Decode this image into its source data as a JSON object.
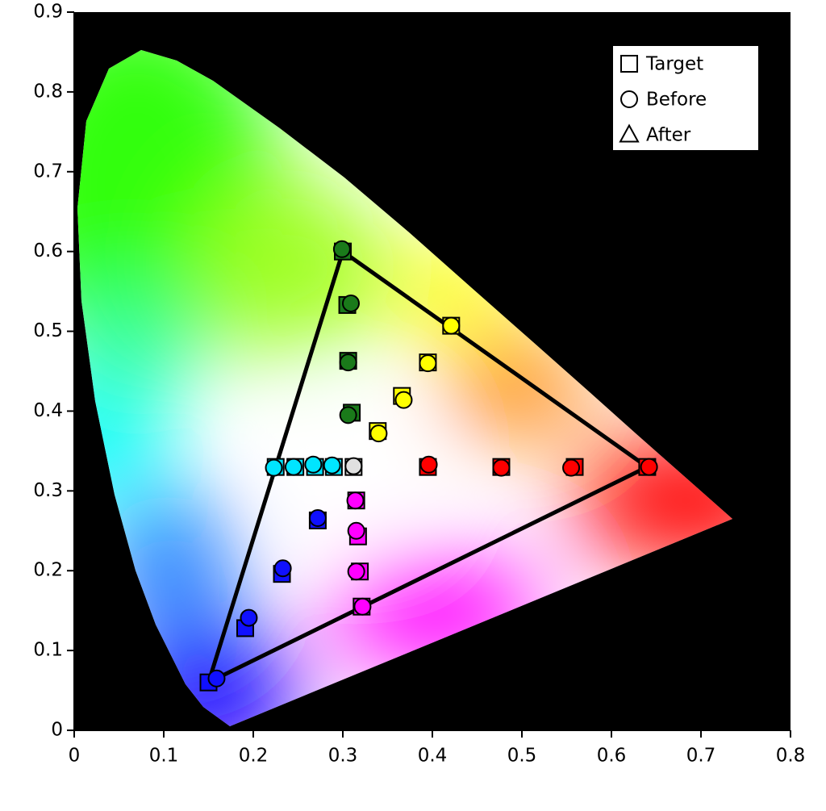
{
  "chart_data": {
    "type": "scatter",
    "xlim": [
      0,
      0.8
    ],
    "ylim": [
      0,
      0.9
    ],
    "xticks": [
      0,
      0.1,
      0.2,
      0.3,
      0.4,
      0.5,
      0.6,
      0.7,
      0.8
    ],
    "yticks": [
      0,
      0.1,
      0.2,
      0.3,
      0.4,
      0.5,
      0.6,
      0.7,
      0.8,
      0.9
    ],
    "legend": "top-right",
    "series": [
      {
        "name": "Target",
        "marker": "square",
        "x": [
          0.64,
          0.3,
          0.15,
          0.421,
          0.312,
          0.559,
          0.477,
          0.395,
          0.305,
          0.306,
          0.31,
          0.191,
          0.232,
          0.272,
          0.225,
          0.247,
          0.269,
          0.29,
          0.395,
          0.366,
          0.339,
          0.321,
          0.319,
          0.317,
          0.315
        ],
        "y": [
          0.33,
          0.6,
          0.06,
          0.507,
          0.33,
          0.33,
          0.33,
          0.33,
          0.533,
          0.463,
          0.398,
          0.128,
          0.196,
          0.263,
          0.33,
          0.33,
          0.33,
          0.33,
          0.461,
          0.419,
          0.375,
          0.155,
          0.199,
          0.243,
          0.288
        ],
        "colors": [
          "#ff0000",
          "#1a7a1a",
          "#1010ff",
          "#ffff00",
          "#e0e0e0",
          "#ff0000",
          "#ff0000",
          "#ff0000",
          "#1a7a1a",
          "#1a7a1a",
          "#1a7a1a",
          "#1010ff",
          "#1010ff",
          "#1010ff",
          "#00e5ff",
          "#00e5ff",
          "#00e5ff",
          "#00e5ff",
          "#ffff00",
          "#ffff00",
          "#ffff00",
          "#ff00ff",
          "#ff00ff",
          "#ff00ff",
          "#ff00ff"
        ]
      },
      {
        "name": "Before",
        "marker": "circle",
        "x": [
          0.642,
          0.299,
          0.159,
          0.421,
          0.312,
          0.555,
          0.477,
          0.396,
          0.309,
          0.306,
          0.306,
          0.195,
          0.233,
          0.272,
          0.223,
          0.245,
          0.267,
          0.288,
          0.395,
          0.368,
          0.34,
          0.322,
          0.315,
          0.315,
          0.314
        ],
        "y": [
          0.33,
          0.603,
          0.065,
          0.507,
          0.331,
          0.329,
          0.329,
          0.333,
          0.535,
          0.461,
          0.395,
          0.141,
          0.203,
          0.266,
          0.329,
          0.33,
          0.333,
          0.332,
          0.46,
          0.414,
          0.372,
          0.155,
          0.199,
          0.25,
          0.288
        ],
        "colors": [
          "#ff0000",
          "#1a7a1a",
          "#1010ff",
          "#ffff00",
          "#e0e0e0",
          "#ff0000",
          "#ff0000",
          "#ff0000",
          "#1a7a1a",
          "#1a7a1a",
          "#1a7a1a",
          "#1010ff",
          "#1010ff",
          "#1010ff",
          "#00e5ff",
          "#00e5ff",
          "#00e5ff",
          "#00e5ff",
          "#ffff00",
          "#ffff00",
          "#ffff00",
          "#ff00ff",
          "#ff00ff",
          "#ff00ff",
          "#ff00ff"
        ]
      },
      {
        "name": "After",
        "marker": "triangle",
        "x": [],
        "y": [],
        "colors": []
      }
    ]
  }
}
